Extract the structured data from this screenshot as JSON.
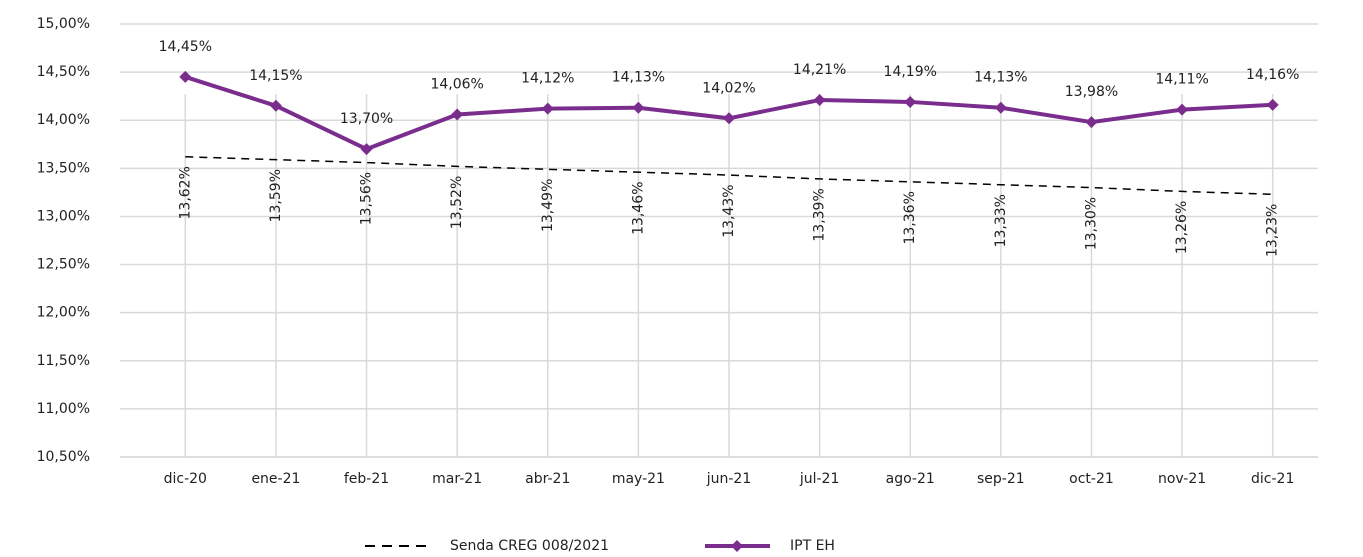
{
  "chart_data": {
    "type": "line",
    "categories": [
      "dic-20",
      "ene-21",
      "feb-21",
      "mar-21",
      "abr-21",
      "may-21",
      "jun-21",
      "jul-21",
      "ago-21",
      "sep-21",
      "oct-21",
      "nov-21",
      "dic-21"
    ],
    "series": [
      {
        "name": "Senda CREG 008/2021",
        "color": "#000000",
        "line_style": "dashed",
        "label_rotation": -90,
        "values": [
          13.62,
          13.59,
          13.56,
          13.52,
          13.49,
          13.46,
          13.43,
          13.39,
          13.36,
          13.33,
          13.3,
          13.26,
          13.23
        ],
        "value_labels": [
          "13,62%",
          "13,59%",
          "13,56%",
          "13,52%",
          "13,49%",
          "13,46%",
          "13,43%",
          "13,39%",
          "13,36%",
          "13,33%",
          "13,30%",
          "13,26%",
          "13,23%"
        ]
      },
      {
        "name": "IPT EH",
        "color": "#7b2d8e",
        "line_style": "solid",
        "marker": "diamond",
        "label_rotation": 0,
        "values": [
          14.45,
          14.15,
          13.7,
          14.06,
          14.12,
          14.13,
          14.02,
          14.21,
          14.19,
          14.13,
          13.98,
          14.11,
          14.16
        ],
        "value_labels": [
          "14,45%",
          "14,15%",
          "13,70%",
          "14,06%",
          "14,12%",
          "14,13%",
          "14,02%",
          "14,21%",
          "14,19%",
          "14,13%",
          "13,98%",
          "14,11%",
          "14,16%"
        ]
      }
    ],
    "ylim": [
      10.5,
      15.0
    ],
    "yticks": [
      {
        "value": 10.5,
        "label": "10,50%"
      },
      {
        "value": 11.0,
        "label": "11,00%"
      },
      {
        "value": 11.5,
        "label": "11,50%"
      },
      {
        "value": 12.0,
        "label": "12,00%"
      },
      {
        "value": 12.5,
        "label": "12,50%"
      },
      {
        "value": 13.0,
        "label": "13,00%"
      },
      {
        "value": 13.5,
        "label": "13,50%"
      },
      {
        "value": 14.0,
        "label": "14,00%"
      },
      {
        "value": 14.5,
        "label": "14,50%"
      },
      {
        "value": 15.0,
        "label": "15,00%"
      }
    ],
    "grid": true,
    "legend": "bottom"
  }
}
